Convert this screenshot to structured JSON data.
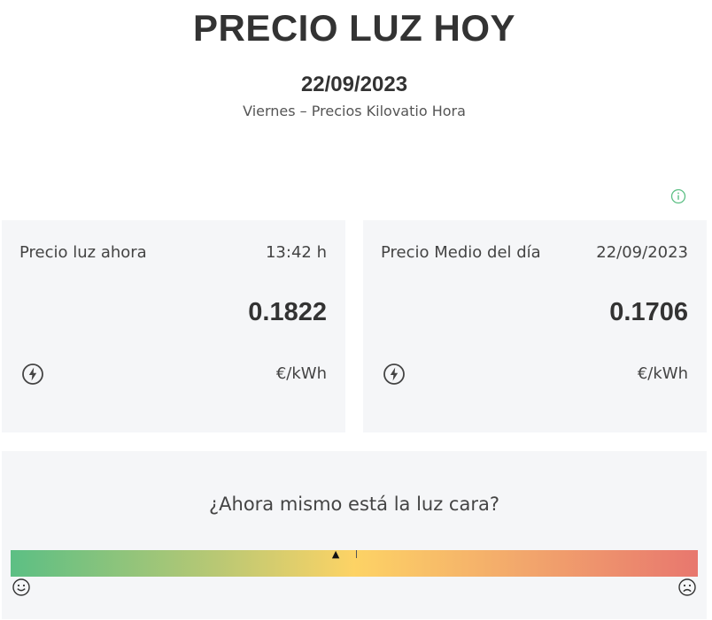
{
  "header": {
    "title": "PRECIO LUZ HOY",
    "date": "22/09/2023",
    "subtitle": "Viernes – Precios Kilovatio Hora"
  },
  "info_icon": "info-icon",
  "cards": [
    {
      "label": "Precio luz ahora",
      "meta": "13:42 h",
      "value": "0.1822",
      "unit": "€/kWh",
      "icon": "bolt-icon"
    },
    {
      "label": "Precio Medio del día",
      "meta": "22/09/2023",
      "value": "0.1706",
      "unit": "€/kWh",
      "icon": "bolt-icon"
    }
  ],
  "gauge": {
    "question": "¿Ahora mismo está la luz cara?",
    "pointer_level": 0.473,
    "average_level": 0.502,
    "low_icon": "happy-face-icon",
    "high_icon": "sad-face-icon",
    "colors": {
      "low": "#5cbf84",
      "mid": "#fdd365",
      "high": "#e8776e"
    }
  },
  "colors": {
    "accent": "#5cbf84",
    "card_background": "#f5f6f8",
    "text": "#333333"
  }
}
